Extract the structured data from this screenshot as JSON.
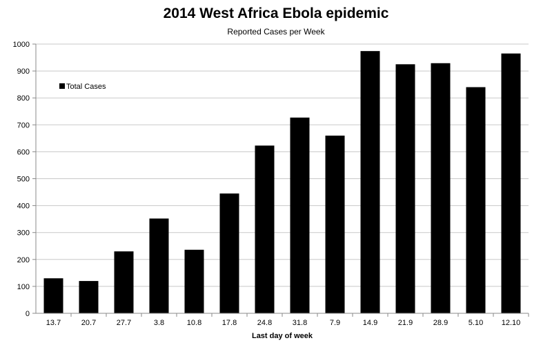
{
  "chart_data": {
    "type": "bar",
    "title": "2014 West Africa Ebola epidemic",
    "subtitle": "Reported Cases per Week",
    "xlabel": "Last day of week",
    "ylabel": "",
    "categories": [
      "13.7",
      "20.7",
      "27.7",
      "3.8",
      "10.8",
      "17.8",
      "24.8",
      "31.8",
      "7.9",
      "14.9",
      "21.9",
      "28.9",
      "5.10",
      "12.10"
    ],
    "series": [
      {
        "name": "Total Cases",
        "color": "#000000",
        "values": [
          130,
          120,
          230,
          352,
          236,
          445,
          623,
          727,
          660,
          974,
          925,
          929,
          840,
          965
        ]
      }
    ],
    "ylim": [
      0,
      1000
    ],
    "yticks": [
      0,
      100,
      200,
      300,
      400,
      500,
      600,
      700,
      800,
      900,
      1000
    ],
    "grid": true,
    "legend_position": "top-left"
  }
}
